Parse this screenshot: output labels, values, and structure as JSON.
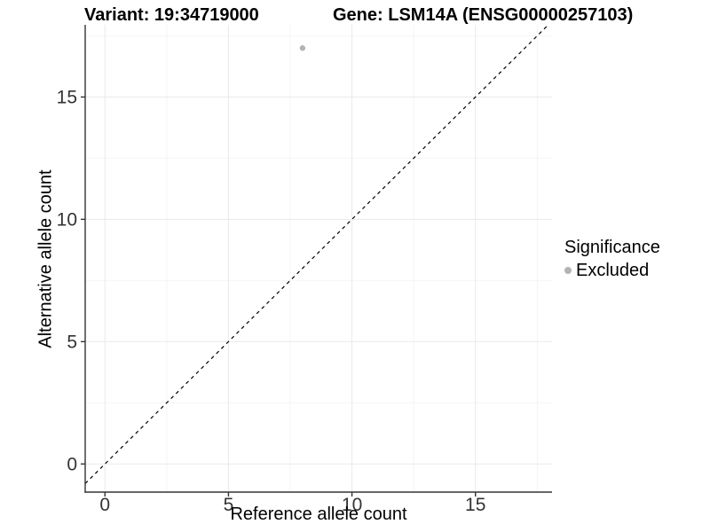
{
  "chart_data": {
    "type": "scatter",
    "title_left": "Variant: 19:34719000",
    "title_right": "Gene: LSM14A (ENSG00000257103)",
    "xlabel": "Reference allele count",
    "ylabel": "Alternative allele count",
    "xlim": [
      -0.8,
      18.1
    ],
    "ylim": [
      -1.15,
      17.95
    ],
    "x_ticks": [
      0,
      5,
      10,
      15
    ],
    "y_ticks": [
      0,
      5,
      10,
      15
    ],
    "minor_step": 2.5,
    "grid": "major+minor on, white panel background",
    "series": [
      {
        "name": "Excluded",
        "marker": "circle",
        "color": "#b3b3b3",
        "points": [
          {
            "x": 8,
            "y": 17
          }
        ]
      }
    ],
    "reference_line": {
      "type": "abline",
      "slope": 1,
      "intercept": 0,
      "style": "dashed",
      "color": "#000000"
    },
    "legend": {
      "title": "Significance",
      "position": "right",
      "items": [
        {
          "label": "Excluded",
          "color": "#b3b3b3",
          "marker": "circle"
        }
      ]
    },
    "colors": {
      "grid_major": "#e9e9e9",
      "grid_minor": "#f4f4f4",
      "axis_line": "#333333",
      "tick_label": "#333333",
      "point": "#b3b3b3"
    }
  }
}
